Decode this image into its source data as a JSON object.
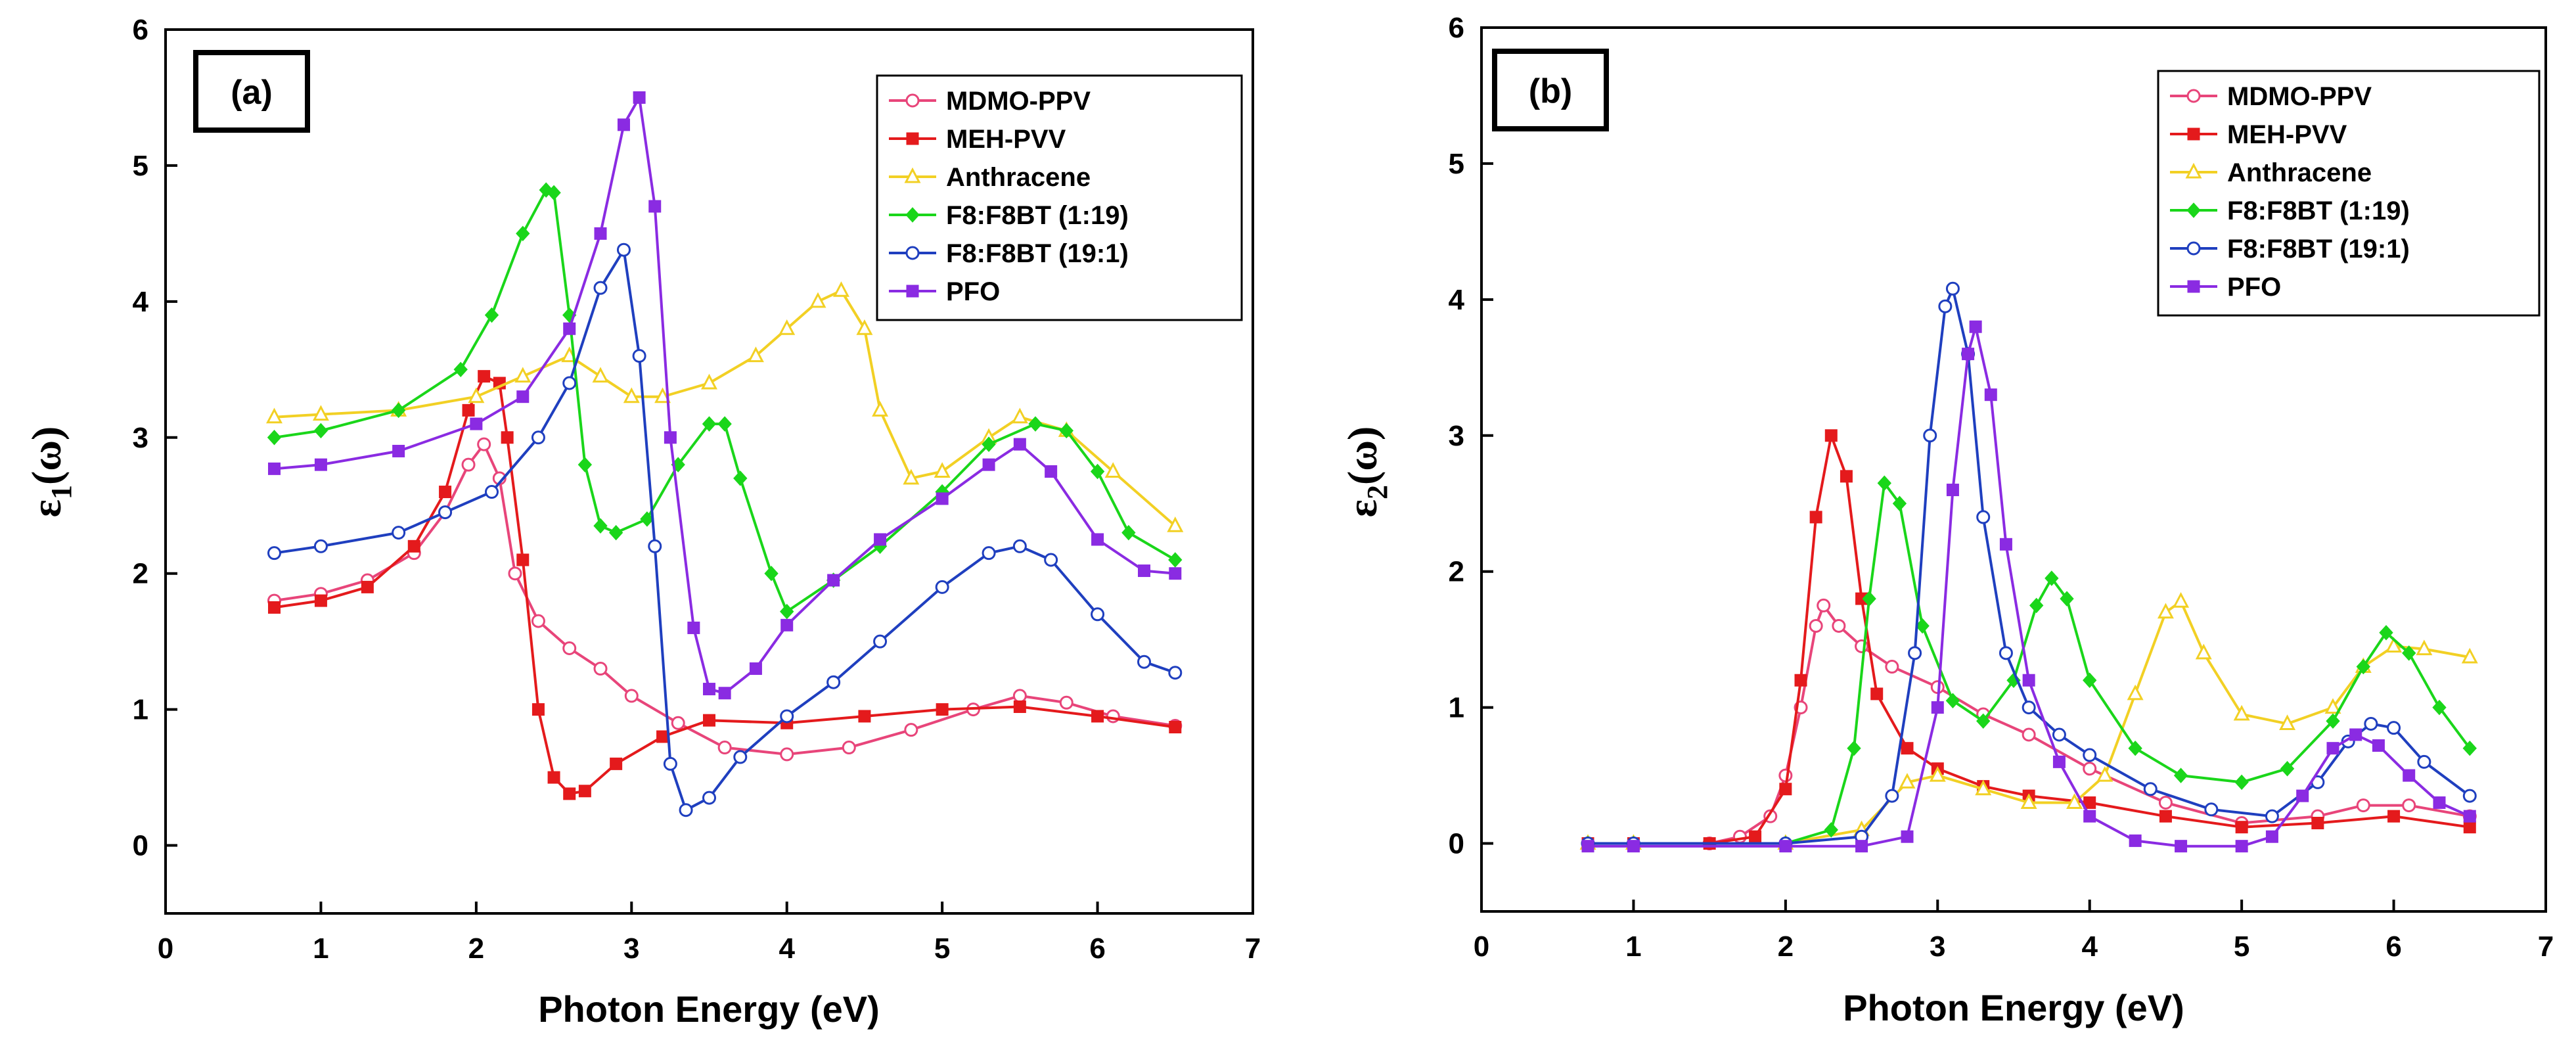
{
  "chart_data": [
    {
      "type": "line",
      "panel_label": "(a)",
      "xlabel": "Photon Energy (eV)",
      "ylabel": {
        "base": "ε",
        "sub": "1",
        "suffix": "(ω)"
      },
      "xlim": [
        0,
        7
      ],
      "ylim": [
        -0.5,
        6
      ],
      "xticks": [
        0,
        1,
        2,
        3,
        4,
        5,
        6,
        7
      ],
      "yticks": [
        0,
        1,
        2,
        3,
        4,
        5,
        6
      ],
      "legend_position": "top-right",
      "series": [
        {
          "name": "MDMO-PPV",
          "color": "#e8457a",
          "marker": "open-circle",
          "x": [
            0.7,
            1.0,
            1.3,
            1.6,
            1.8,
            1.95,
            2.05,
            2.15,
            2.25,
            2.4,
            2.6,
            2.8,
            3.0,
            3.3,
            3.6,
            4.0,
            4.4,
            4.8,
            5.2,
            5.5,
            5.8,
            6.1,
            6.5
          ],
          "y": [
            1.8,
            1.85,
            1.95,
            2.15,
            2.45,
            2.8,
            2.95,
            2.7,
            2.0,
            1.65,
            1.45,
            1.3,
            1.1,
            0.9,
            0.72,
            0.67,
            0.72,
            0.85,
            1.0,
            1.1,
            1.05,
            0.95,
            0.88
          ]
        },
        {
          "name": "MEH-PVV",
          "color": "#e41a1c",
          "marker": "filled-square",
          "x": [
            0.7,
            1.0,
            1.3,
            1.6,
            1.8,
            1.95,
            2.05,
            2.15,
            2.2,
            2.3,
            2.4,
            2.5,
            2.6,
            2.7,
            2.9,
            3.2,
            3.5,
            4.0,
            4.5,
            5.0,
            5.5,
            6.0,
            6.5
          ],
          "y": [
            1.75,
            1.8,
            1.9,
            2.2,
            2.6,
            3.2,
            3.45,
            3.4,
            3.0,
            2.1,
            1.0,
            0.5,
            0.38,
            0.4,
            0.6,
            0.8,
            0.92,
            0.9,
            0.95,
            1.0,
            1.02,
            0.95,
            0.87
          ]
        },
        {
          "name": "Anthracene",
          "color": "#f2d024",
          "marker": "open-triangle",
          "x": [
            0.7,
            1.0,
            1.5,
            2.0,
            2.3,
            2.6,
            2.8,
            3.0,
            3.2,
            3.5,
            3.8,
            4.0,
            4.2,
            4.35,
            4.5,
            4.6,
            4.8,
            5.0,
            5.3,
            5.5,
            5.8,
            6.1,
            6.5
          ],
          "y": [
            3.15,
            3.17,
            3.2,
            3.3,
            3.45,
            3.6,
            3.45,
            3.3,
            3.3,
            3.4,
            3.6,
            3.8,
            4.0,
            4.08,
            3.8,
            3.2,
            2.7,
            2.75,
            3.0,
            3.15,
            3.05,
            2.75,
            2.35
          ]
        },
        {
          "name": "F8:F8BT (1:19)",
          "color": "#1ad61a",
          "marker": "filled-diamond",
          "x": [
            0.7,
            1.0,
            1.5,
            1.9,
            2.1,
            2.3,
            2.45,
            2.5,
            2.6,
            2.7,
            2.8,
            2.9,
            3.1,
            3.3,
            3.5,
            3.6,
            3.7,
            3.9,
            4.0,
            4.3,
            4.6,
            5.0,
            5.3,
            5.6,
            5.8,
            6.0,
            6.2,
            6.5
          ],
          "y": [
            3.0,
            3.05,
            3.2,
            3.5,
            3.9,
            4.5,
            4.82,
            4.8,
            3.9,
            2.8,
            2.35,
            2.3,
            2.4,
            2.8,
            3.1,
            3.1,
            2.7,
            2.0,
            1.72,
            1.95,
            2.2,
            2.6,
            2.95,
            3.1,
            3.05,
            2.75,
            2.3,
            2.1
          ]
        },
        {
          "name": "F8:F8BT (19:1)",
          "color": "#1f3fbf",
          "marker": "open-circle",
          "x": [
            0.7,
            1.0,
            1.5,
            1.8,
            2.1,
            2.4,
            2.6,
            2.8,
            2.95,
            3.05,
            3.15,
            3.25,
            3.35,
            3.5,
            3.7,
            4.0,
            4.3,
            4.6,
            5.0,
            5.3,
            5.5,
            5.7,
            6.0,
            6.3,
            6.5
          ],
          "y": [
            2.15,
            2.2,
            2.3,
            2.45,
            2.6,
            3.0,
            3.4,
            4.1,
            4.38,
            3.6,
            2.2,
            0.6,
            0.26,
            0.35,
            0.65,
            0.95,
            1.2,
            1.5,
            1.9,
            2.15,
            2.2,
            2.1,
            1.7,
            1.35,
            1.27
          ]
        },
        {
          "name": "PFO",
          "color": "#8a2be2",
          "marker": "filled-square",
          "x": [
            0.7,
            1.0,
            1.5,
            2.0,
            2.3,
            2.6,
            2.8,
            2.95,
            3.05,
            3.15,
            3.25,
            3.4,
            3.5,
            3.6,
            3.8,
            4.0,
            4.3,
            4.6,
            5.0,
            5.3,
            5.5,
            5.7,
            6.0,
            6.3,
            6.5
          ],
          "y": [
            2.77,
            2.8,
            2.9,
            3.1,
            3.3,
            3.8,
            4.5,
            5.3,
            5.5,
            4.7,
            3.0,
            1.6,
            1.15,
            1.12,
            1.3,
            1.62,
            1.95,
            2.25,
            2.55,
            2.8,
            2.95,
            2.75,
            2.25,
            2.02,
            2.0
          ]
        }
      ]
    },
    {
      "type": "line",
      "panel_label": "(b)",
      "xlabel": "Photon Energy (eV)",
      "ylabel": {
        "base": "ε",
        "sub": "2",
        "suffix": "(ω)"
      },
      "xlim": [
        0,
        7
      ],
      "ylim": [
        -0.5,
        6
      ],
      "xticks": [
        0,
        1,
        2,
        3,
        4,
        5,
        6,
        7
      ],
      "yticks": [
        0,
        1,
        2,
        3,
        4,
        5,
        6
      ],
      "legend_position": "top-right",
      "series": [
        {
          "name": "MDMO-PPV",
          "color": "#e8457a",
          "marker": "open-circle",
          "x": [
            0.7,
            1.0,
            1.5,
            1.7,
            1.9,
            2.0,
            2.1,
            2.2,
            2.25,
            2.35,
            2.5,
            2.7,
            3.0,
            3.3,
            3.6,
            4.0,
            4.5,
            5.0,
            5.5,
            5.8,
            6.1,
            6.5
          ],
          "y": [
            0,
            0,
            0,
            0.05,
            0.2,
            0.5,
            1.0,
            1.6,
            1.75,
            1.6,
            1.45,
            1.3,
            1.15,
            0.95,
            0.8,
            0.55,
            0.3,
            0.15,
            0.2,
            0.28,
            0.28,
            0.2
          ]
        },
        {
          "name": "MEH-PVV",
          "color": "#e41a1c",
          "marker": "filled-square",
          "x": [
            0.7,
            1.0,
            1.5,
            1.8,
            2.0,
            2.1,
            2.2,
            2.3,
            2.4,
            2.5,
            2.6,
            2.8,
            3.0,
            3.3,
            3.6,
            4.0,
            4.5,
            5.0,
            5.5,
            6.0,
            6.5
          ],
          "y": [
            0,
            0,
            0,
            0.05,
            0.4,
            1.2,
            2.4,
            3.0,
            2.7,
            1.8,
            1.1,
            0.7,
            0.55,
            0.42,
            0.35,
            0.3,
            0.2,
            0.12,
            0.15,
            0.2,
            0.12
          ]
        },
        {
          "name": "Anthracene",
          "color": "#f2d024",
          "marker": "open-triangle",
          "x": [
            0.7,
            1.0,
            2.0,
            2.5,
            2.8,
            3.0,
            3.3,
            3.6,
            3.9,
            4.1,
            4.3,
            4.5,
            4.6,
            4.75,
            5.0,
            5.3,
            5.6,
            5.8,
            6.0,
            6.2,
            6.5
          ],
          "y": [
            0,
            0,
            0,
            0.1,
            0.45,
            0.5,
            0.4,
            0.3,
            0.3,
            0.5,
            1.1,
            1.7,
            1.78,
            1.4,
            0.95,
            0.88,
            1.0,
            1.3,
            1.45,
            1.43,
            1.37
          ]
        },
        {
          "name": "F8:F8BT (1:19)",
          "color": "#1ad61a",
          "marker": "filled-diamond",
          "x": [
            0.7,
            1.0,
            2.0,
            2.3,
            2.45,
            2.55,
            2.65,
            2.75,
            2.9,
            3.1,
            3.3,
            3.5,
            3.65,
            3.75,
            3.85,
            4.0,
            4.3,
            4.6,
            5.0,
            5.3,
            5.6,
            5.8,
            5.95,
            6.1,
            6.3,
            6.5
          ],
          "y": [
            0,
            0,
            0,
            0.1,
            0.7,
            1.8,
            2.65,
            2.5,
            1.6,
            1.05,
            0.9,
            1.2,
            1.75,
            1.95,
            1.8,
            1.2,
            0.7,
            0.5,
            0.45,
            0.55,
            0.9,
            1.3,
            1.55,
            1.4,
            1.0,
            0.7
          ]
        },
        {
          "name": "F8:F8BT (19:1)",
          "color": "#1f3fbf",
          "marker": "open-circle",
          "x": [
            0.7,
            1.0,
            2.0,
            2.5,
            2.7,
            2.85,
            2.95,
            3.05,
            3.1,
            3.2,
            3.3,
            3.45,
            3.6,
            3.8,
            4.0,
            4.4,
            4.8,
            5.2,
            5.5,
            5.7,
            5.85,
            6.0,
            6.2,
            6.5
          ],
          "y": [
            0,
            0,
            0,
            0.05,
            0.35,
            1.4,
            3.0,
            3.95,
            4.08,
            3.6,
            2.4,
            1.4,
            1.0,
            0.8,
            0.65,
            0.4,
            0.25,
            0.2,
            0.45,
            0.75,
            0.88,
            0.85,
            0.6,
            0.35
          ]
        },
        {
          "name": "PFO",
          "color": "#8a2be2",
          "marker": "filled-square",
          "x": [
            0.7,
            1.0,
            2.0,
            2.5,
            2.8,
            3.0,
            3.1,
            3.2,
            3.25,
            3.35,
            3.45,
            3.6,
            3.8,
            4.0,
            4.3,
            4.6,
            5.0,
            5.2,
            5.4,
            5.6,
            5.75,
            5.9,
            6.1,
            6.3,
            6.5
          ],
          "y": [
            -0.02,
            -0.02,
            -0.02,
            -0.02,
            0.05,
            1.0,
            2.6,
            3.6,
            3.8,
            3.3,
            2.2,
            1.2,
            0.6,
            0.2,
            0.02,
            -0.02,
            -0.02,
            0.05,
            0.35,
            0.7,
            0.8,
            0.72,
            0.5,
            0.3,
            0.2
          ]
        }
      ]
    }
  ]
}
